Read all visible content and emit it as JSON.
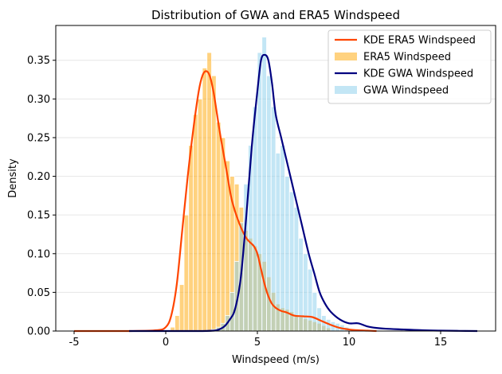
{
  "chart_data": {
    "type": "histogram",
    "title": "Distribution of GWA and ERA5 Windspeed",
    "xlabel": "Windspeed (m/s)",
    "ylabel": "Density",
    "xlim": [
      -6,
      18
    ],
    "ylim": [
      0,
      0.395
    ],
    "xticks": [
      -5,
      0,
      5,
      10,
      15
    ],
    "yticks": [
      0.0,
      0.05,
      0.1,
      0.15,
      0.2,
      0.25,
      0.3,
      0.35
    ],
    "grid": "horizontal",
    "legend_position": "top-right",
    "series": [
      {
        "name": "KDE ERA5 Windspeed",
        "kind": "line",
        "color": "#FF4500",
        "x": [
          -5,
          -2,
          -0.5,
          0,
          0.3,
          0.6,
          0.9,
          1.2,
          1.5,
          1.8,
          2.0,
          2.2,
          2.4,
          2.6,
          2.8,
          3.0,
          3.3,
          3.6,
          4.0,
          4.4,
          4.8,
          5.0,
          5.2,
          5.4,
          5.6,
          5.8,
          6.0,
          6.3,
          6.6,
          7.0,
          7.5,
          8.0,
          8.5,
          9.0,
          9.5,
          10.0,
          10.5,
          11.0,
          11.5
        ],
        "y": [
          0.0,
          0.0,
          0.001,
          0.005,
          0.02,
          0.06,
          0.13,
          0.2,
          0.26,
          0.31,
          0.33,
          0.336,
          0.33,
          0.31,
          0.28,
          0.25,
          0.21,
          0.17,
          0.14,
          0.12,
          0.11,
          0.1,
          0.08,
          0.06,
          0.045,
          0.035,
          0.03,
          0.026,
          0.024,
          0.02,
          0.019,
          0.018,
          0.013,
          0.008,
          0.004,
          0.002,
          0.001,
          0.0005,
          0.0
        ]
      },
      {
        "name": "ERA5 Windspeed",
        "kind": "histogram",
        "color": "#FFA500",
        "bin_edges": [
          0.25,
          0.5,
          0.75,
          1.0,
          1.25,
          1.5,
          1.75,
          2.0,
          2.25,
          2.5,
          2.75,
          3.0,
          3.25,
          3.5,
          3.75,
          4.0,
          4.25,
          4.5,
          4.75,
          5.0,
          5.25,
          5.5,
          5.75,
          6.0,
          6.25,
          6.5,
          6.75,
          7.0,
          7.25,
          7.5,
          7.75,
          8.0,
          8.25,
          8.5,
          8.75,
          9.0
        ],
        "values": [
          0.005,
          0.02,
          0.06,
          0.15,
          0.24,
          0.28,
          0.3,
          0.34,
          0.36,
          0.33,
          0.27,
          0.25,
          0.22,
          0.2,
          0.19,
          0.16,
          0.13,
          0.12,
          0.11,
          0.1,
          0.09,
          0.07,
          0.05,
          0.035,
          0.03,
          0.028,
          0.025,
          0.02,
          0.018,
          0.016,
          0.014,
          0.012,
          0.01,
          0.007,
          0.004
        ]
      },
      {
        "name": "KDE GWA Windspeed",
        "kind": "line",
        "color": "#000080",
        "x": [
          -2,
          2.0,
          3.0,
          3.5,
          3.8,
          4.1,
          4.4,
          4.7,
          5.0,
          5.2,
          5.4,
          5.6,
          5.8,
          6.0,
          6.3,
          6.6,
          7.0,
          7.4,
          7.8,
          8.1,
          8.4,
          8.7,
          9.0,
          9.5,
          10.0,
          10.5,
          11.0,
          11.5,
          12.0,
          13.0,
          14.0,
          15.0,
          16.0,
          17.0
        ],
        "y": [
          0.0,
          0.0,
          0.003,
          0.015,
          0.03,
          0.07,
          0.15,
          0.24,
          0.31,
          0.35,
          0.357,
          0.35,
          0.32,
          0.28,
          0.25,
          0.22,
          0.18,
          0.14,
          0.1,
          0.075,
          0.05,
          0.035,
          0.025,
          0.015,
          0.01,
          0.01,
          0.006,
          0.004,
          0.003,
          0.002,
          0.001,
          0.0005,
          0.0002,
          0.0
        ]
      },
      {
        "name": "GWA Windspeed",
        "kind": "histogram",
        "color": "#87CEEB",
        "bin_edges": [
          2.5,
          2.75,
          3.0,
          3.25,
          3.5,
          3.75,
          4.0,
          4.25,
          4.5,
          4.75,
          5.0,
          5.25,
          5.5,
          5.75,
          6.0,
          6.25,
          6.5,
          6.75,
          7.0,
          7.25,
          7.5,
          7.75,
          8.0,
          8.25,
          8.5,
          8.75,
          9.0,
          9.25,
          9.5,
          9.75,
          10.0
        ],
        "values": [
          0.002,
          0.005,
          0.01,
          0.02,
          0.05,
          0.09,
          0.14,
          0.19,
          0.24,
          0.29,
          0.36,
          0.38,
          0.33,
          0.29,
          0.23,
          0.24,
          0.2,
          0.18,
          0.16,
          0.12,
          0.1,
          0.08,
          0.05,
          0.03,
          0.02,
          0.015,
          0.012,
          0.01,
          0.008,
          0.005
        ]
      }
    ]
  }
}
